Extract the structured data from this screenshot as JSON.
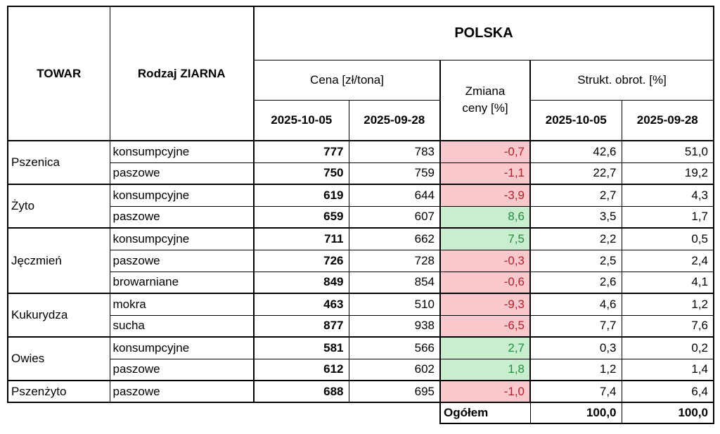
{
  "chart_data": {
    "type": "table",
    "title": "POLSKA",
    "columns": {
      "towar_label": "TOWAR",
      "rodzaj_label": "Rodzaj ZIARNA",
      "region_label": "POLSKA",
      "price_group_label": "Cena [zł/tona]",
      "change_label_line1": "Zmiana",
      "change_label_line2": "ceny [%]",
      "share_group_label": "Strukt. obrot. [%]",
      "date_current": "2025-10-05",
      "date_previous": "2025-09-28"
    },
    "rows": [
      {
        "towar": "Pszenica",
        "rodzaj": "konsumpcyjne",
        "price_current": "777",
        "price_previous": "783",
        "change": "-0,7",
        "share_current": "42,6",
        "share_previous": "51,0"
      },
      {
        "towar": "Pszenica",
        "rodzaj": "paszowe",
        "price_current": "750",
        "price_previous": "759",
        "change": "-1,1",
        "share_current": "22,7",
        "share_previous": "19,2"
      },
      {
        "towar": "Żyto",
        "rodzaj": "konsumpcyjne",
        "price_current": "619",
        "price_previous": "644",
        "change": "-3,9",
        "share_current": "2,7",
        "share_previous": "4,3"
      },
      {
        "towar": "Żyto",
        "rodzaj": "paszowe",
        "price_current": "659",
        "price_previous": "607",
        "change": "8,6",
        "share_current": "3,5",
        "share_previous": "1,7"
      },
      {
        "towar": "Jęczmień",
        "rodzaj": "konsumpcyjne",
        "price_current": "711",
        "price_previous": "662",
        "change": "7,5",
        "share_current": "2,2",
        "share_previous": "0,5"
      },
      {
        "towar": "Jęczmień",
        "rodzaj": "paszowe",
        "price_current": "726",
        "price_previous": "728",
        "change": "-0,3",
        "share_current": "2,5",
        "share_previous": "2,4"
      },
      {
        "towar": "Jęczmień",
        "rodzaj": "browarniane",
        "price_current": "849",
        "price_previous": "854",
        "change": "-0,6",
        "share_current": "2,6",
        "share_previous": "4,1"
      },
      {
        "towar": "Kukurydza",
        "rodzaj": "mokra",
        "price_current": "463",
        "price_previous": "510",
        "change": "-9,3",
        "share_current": "4,6",
        "share_previous": "1,2"
      },
      {
        "towar": "Kukurydza",
        "rodzaj": "sucha",
        "price_current": "877",
        "price_previous": "938",
        "change": "-6,5",
        "share_current": "7,7",
        "share_previous": "7,6"
      },
      {
        "towar": "Owies",
        "rodzaj": "konsumpcyjne",
        "price_current": "581",
        "price_previous": "566",
        "change": "2,7",
        "share_current": "0,3",
        "share_previous": "0,2"
      },
      {
        "towar": "Owies",
        "rodzaj": "paszowe",
        "price_current": "612",
        "price_previous": "602",
        "change": "1,8",
        "share_current": "1,2",
        "share_previous": "1,4"
      },
      {
        "towar": "Pszenżyto",
        "rodzaj": "paszowe",
        "price_current": "688",
        "price_previous": "695",
        "change": "-1,0",
        "share_current": "7,4",
        "share_previous": "6,4"
      }
    ],
    "footer": {
      "label": "Ogółem",
      "share_current": "100,0",
      "share_previous": "100,0"
    }
  },
  "colors": {
    "change_negative_bg": "#f8c8cd",
    "change_negative_text": "#b41f2b",
    "change_positive_bg": "#c9edcf",
    "change_positive_text": "#1e8f3e",
    "border": "#000000"
  }
}
